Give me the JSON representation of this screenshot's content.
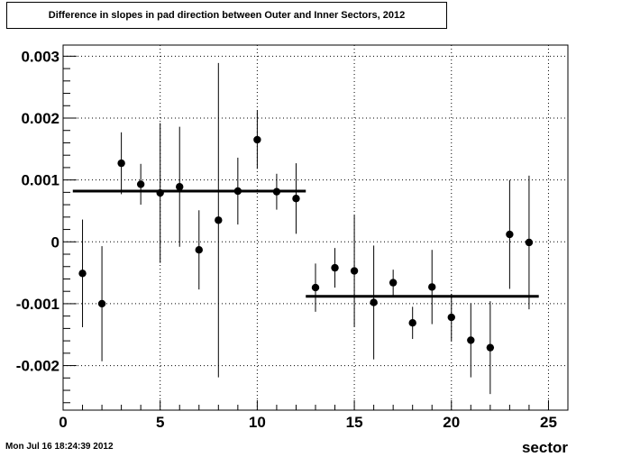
{
  "chart_data": {
    "type": "scatter",
    "title": "Difference in slopes in pad direction between Outer and Inner Sectors, 2012",
    "xlabel": "sector",
    "ylabel": "",
    "xlim": [
      0,
      26
    ],
    "ylim": [
      -0.00272,
      0.00318
    ],
    "x_ticks": [
      0,
      5,
      10,
      15,
      20,
      25
    ],
    "x_tick_labels": [
      "0",
      "5",
      "10",
      "15",
      "20",
      "25"
    ],
    "y_ticks": [
      -0.002,
      -0.001,
      0,
      0.001,
      0.002,
      0.003
    ],
    "y_tick_labels": [
      "-0.002",
      "-0.001",
      "0",
      "0.001",
      "0.002",
      "0.003"
    ],
    "grid": true,
    "series": [
      {
        "points": [
          {
            "x": 1,
            "y": -0.00051,
            "err": 0.00087
          },
          {
            "x": 2,
            "y": -0.001,
            "err": 0.00093
          },
          {
            "x": 3,
            "y": 0.00127,
            "err": 0.0005
          },
          {
            "x": 4,
            "y": 0.00093,
            "err": 0.00033
          },
          {
            "x": 5,
            "y": 0.00079,
            "err": 0.00113
          },
          {
            "x": 6,
            "y": 0.00089,
            "err": 0.00097
          },
          {
            "x": 7,
            "y": -0.00013,
            "err": 0.00064
          },
          {
            "x": 8,
            "y": 0.00035,
            "err": 0.00254
          },
          {
            "x": 9,
            "y": 0.00082,
            "err": 0.00054
          },
          {
            "x": 10,
            "y": 0.00165,
            "err": 0.00047
          },
          {
            "x": 11,
            "y": 0.00081,
            "err": 0.00029
          },
          {
            "x": 12,
            "y": 0.0007,
            "err": 0.00057
          },
          {
            "x": 13,
            "y": -0.00074,
            "err": 0.00039
          },
          {
            "x": 14,
            "y": -0.00042,
            "err": 0.00032
          },
          {
            "x": 15,
            "y": -0.00047,
            "err": 0.0009
          },
          {
            "x": 16,
            "y": -0.00098,
            "err": 0.00092
          },
          {
            "x": 17,
            "y": -0.00066,
            "err": 0.00021
          },
          {
            "x": 18,
            "y": -0.00131,
            "err": 0.00026
          },
          {
            "x": 19,
            "y": -0.00073,
            "err": 0.0006
          },
          {
            "x": 20,
            "y": -0.00122,
            "err": 0.00038
          },
          {
            "x": 21,
            "y": -0.00159,
            "err": 0.0006
          },
          {
            "x": 22,
            "y": -0.00171,
            "err": 0.00075
          },
          {
            "x": 23,
            "y": 0.00012,
            "err": 0.00088
          },
          {
            "x": 24,
            "y": -1e-05,
            "err": 0.00108
          }
        ]
      }
    ],
    "fits": [
      {
        "x_start": 0.5,
        "x_end": 12.5,
        "y": 0.00082
      },
      {
        "x_start": 12.5,
        "x_end": 24.5,
        "y": -0.00088
      }
    ]
  },
  "timestamp": "Mon Jul 16 18:24:39 2012"
}
